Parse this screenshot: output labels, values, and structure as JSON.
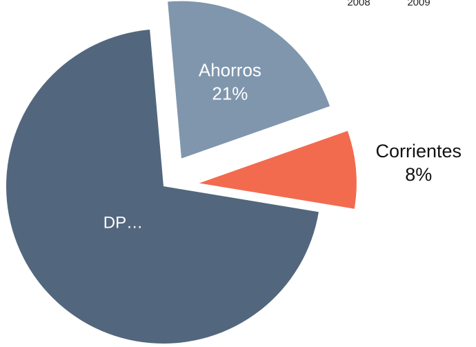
{
  "chart_data": {
    "type": "pie",
    "categories": [
      "Ahorros",
      "Corrientes",
      "DP…"
    ],
    "values": [
      21,
      8,
      71
    ],
    "value_labels": [
      "21%",
      "8%",
      null
    ],
    "colors": [
      "#7f96ad",
      "#f26b4f",
      "#52677d"
    ],
    "annotations": [
      "2008",
      "2009"
    ]
  }
}
